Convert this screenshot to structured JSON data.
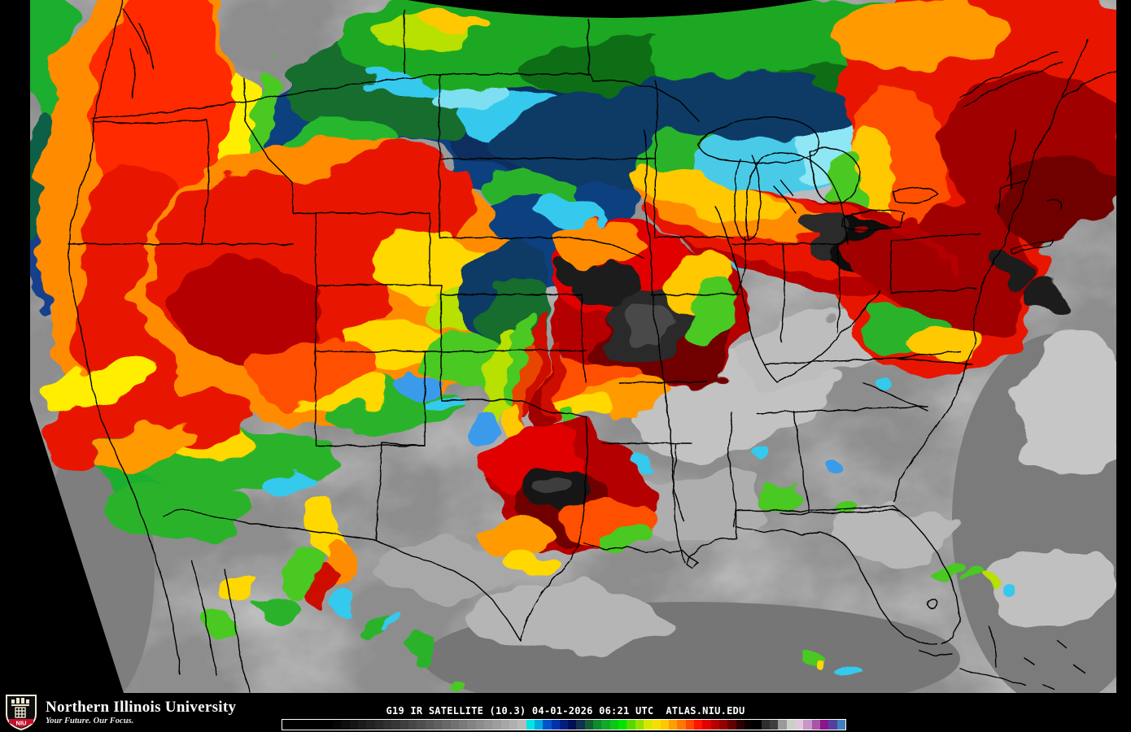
{
  "map": {
    "satellite": "G19",
    "product": "IR SATELLITE (10.3)",
    "date": "04-01-2026",
    "time_utc": "06:21 UTC",
    "source": "ATLAS.NIU.EDU"
  },
  "footer": {
    "caption": "G19 IR SATELLITE (10.3) 04-01-2026 06:21 UTC  ATLAS.NIU.EDU",
    "logo": {
      "acronym": "NIU",
      "institution": "Northern Illinois University",
      "tagline": "Your Future. Our Focus."
    },
    "colorbar_colors": [
      "#000000",
      "#000000",
      "#000000",
      "#000000",
      "#000000",
      "#000000",
      "#060606",
      "#0d0d0d",
      "#141414",
      "#1b1b1b",
      "#222222",
      "#292929",
      "#303030",
      "#373737",
      "#3f3f3f",
      "#474747",
      "#4f4f4f",
      "#575757",
      "#5f5f5f",
      "#686868",
      "#717171",
      "#7a7a7a",
      "#838383",
      "#8c8c8c",
      "#959595",
      "#9e9e9e",
      "#a7a7a7",
      "#b0b0b0",
      "#b9b9b9",
      "#00e4e4",
      "#00aadd",
      "#0055cc",
      "#0033aa",
      "#001d80",
      "#000e55",
      "#12324f",
      "#145c36",
      "#0f8a2e",
      "#12a82a",
      "#0cc618",
      "#00e400",
      "#55da00",
      "#96e000",
      "#d4e800",
      "#f4e000",
      "#ffc800",
      "#ffa000",
      "#ff7800",
      "#ff4800",
      "#ff1400",
      "#e00000",
      "#b40000",
      "#940000",
      "#600000",
      "#2c0000",
      "#0a0000",
      "#000000",
      "#2e2e2e",
      "#3e3e3e",
      "#9a9a9a",
      "#c8d0c8",
      "#e0c6dc",
      "#c698c6",
      "#a855a8",
      "#8c148c",
      "#5540a0",
      "#4080c0"
    ]
  }
}
